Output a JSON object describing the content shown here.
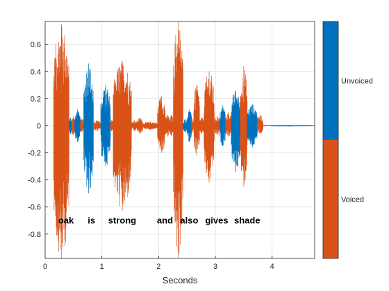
{
  "chart_data": {
    "type": "line",
    "title": "",
    "xlabel": "Seconds",
    "ylabel": "",
    "xlim": [
      0,
      4.75
    ],
    "ylim": [
      -0.98,
      0.77
    ],
    "x_ticks": [
      "0",
      "1",
      "2",
      "3",
      "4"
    ],
    "y_ticks": [
      "0.6",
      "0.4",
      "0.2",
      "0",
      "-0.2",
      "-0.4",
      "-0.6",
      "-0.8"
    ],
    "grid": true,
    "colors": {
      "voiced": "#D95319",
      "unvoiced": "#0072BD",
      "silence": "#0072BD"
    },
    "series": [
      {
        "name": "Voiced",
        "color": "#D95319"
      },
      {
        "name": "Unvoiced",
        "color": "#0072BD"
      }
    ],
    "segments": [
      {
        "start": 0.0,
        "end": 0.15,
        "label": "unvoiced",
        "amp_pos": 0.0,
        "amp_neg": 0.0
      },
      {
        "start": 0.15,
        "end": 0.42,
        "label": "voiced",
        "amp_pos": 0.75,
        "amp_neg": 0.98
      },
      {
        "start": 0.42,
        "end": 0.47,
        "label": "unvoiced",
        "amp_pos": 0.06,
        "amp_neg": 0.06
      },
      {
        "start": 0.47,
        "end": 0.52,
        "label": "voiced",
        "amp_pos": 0.07,
        "amp_neg": 0.07
      },
      {
        "start": 0.52,
        "end": 0.62,
        "label": "unvoiced",
        "amp_pos": 0.12,
        "amp_neg": 0.12
      },
      {
        "start": 0.62,
        "end": 0.68,
        "label": "voiced",
        "amp_pos": 0.05,
        "amp_neg": 0.05
      },
      {
        "start": 0.68,
        "end": 0.85,
        "label": "unvoiced",
        "amp_pos": 0.46,
        "amp_neg": 0.5
      },
      {
        "start": 0.85,
        "end": 0.98,
        "label": "voiced",
        "amp_pos": 0.04,
        "amp_neg": 0.04
      },
      {
        "start": 0.98,
        "end": 1.15,
        "label": "unvoiced",
        "amp_pos": 0.3,
        "amp_neg": 0.3
      },
      {
        "start": 1.15,
        "end": 1.2,
        "label": "voiced",
        "amp_pos": 0.04,
        "amp_neg": 0.04
      },
      {
        "start": 1.2,
        "end": 1.52,
        "label": "voiced",
        "amp_pos": 0.48,
        "amp_neg": 0.63
      },
      {
        "start": 1.52,
        "end": 1.62,
        "label": "voiced",
        "amp_pos": 0.04,
        "amp_neg": 0.04
      },
      {
        "start": 1.62,
        "end": 1.72,
        "label": "voiced",
        "amp_pos": 0.06,
        "amp_neg": 0.06
      },
      {
        "start": 1.72,
        "end": 1.98,
        "label": "voiced",
        "amp_pos": 0.03,
        "amp_neg": 0.03
      },
      {
        "start": 1.98,
        "end": 2.12,
        "label": "voiced",
        "amp_pos": 0.22,
        "amp_neg": 0.2
      },
      {
        "start": 2.12,
        "end": 2.2,
        "label": "voiced",
        "amp_pos": 0.08,
        "amp_neg": 0.08
      },
      {
        "start": 2.2,
        "end": 2.26,
        "label": "voiced",
        "amp_pos": 0.08,
        "amp_neg": 0.08
      },
      {
        "start": 2.26,
        "end": 2.43,
        "label": "voiced",
        "amp_pos": 0.77,
        "amp_neg": 0.98
      },
      {
        "start": 2.43,
        "end": 2.5,
        "label": "unvoiced",
        "amp_pos": 0.05,
        "amp_neg": 0.05
      },
      {
        "start": 2.5,
        "end": 2.58,
        "label": "unvoiced",
        "amp_pos": 0.12,
        "amp_neg": 0.12
      },
      {
        "start": 2.58,
        "end": 2.62,
        "label": "voiced",
        "amp_pos": 0.05,
        "amp_neg": 0.05
      },
      {
        "start": 2.62,
        "end": 2.72,
        "label": "voiced",
        "amp_pos": 0.3,
        "amp_neg": 0.22
      },
      {
        "start": 2.72,
        "end": 2.8,
        "label": "voiced",
        "amp_pos": 0.06,
        "amp_neg": 0.06
      },
      {
        "start": 2.8,
        "end": 2.98,
        "label": "voiced",
        "amp_pos": 0.4,
        "amp_neg": 0.42
      },
      {
        "start": 2.98,
        "end": 3.08,
        "label": "voiced",
        "amp_pos": 0.07,
        "amp_neg": 0.07
      },
      {
        "start": 3.08,
        "end": 3.18,
        "label": "unvoiced",
        "amp_pos": 0.15,
        "amp_neg": 0.15
      },
      {
        "start": 3.18,
        "end": 3.28,
        "label": "voiced",
        "amp_pos": 0.1,
        "amp_neg": 0.08
      },
      {
        "start": 3.28,
        "end": 3.44,
        "label": "unvoiced",
        "amp_pos": 0.26,
        "amp_neg": 0.34
      },
      {
        "start": 3.44,
        "end": 3.56,
        "label": "voiced",
        "amp_pos": 0.44,
        "amp_neg": 0.45
      },
      {
        "start": 3.56,
        "end": 3.74,
        "label": "unvoiced",
        "amp_pos": 0.16,
        "amp_neg": 0.16
      },
      {
        "start": 3.74,
        "end": 3.84,
        "label": "voiced",
        "amp_pos": 0.08,
        "amp_neg": 0.06
      },
      {
        "start": 3.84,
        "end": 4.75,
        "label": "unvoiced",
        "amp_pos": 0.005,
        "amp_neg": 0.005
      }
    ],
    "annotations": [
      {
        "text": "oak",
        "x": 0.23,
        "y": -0.7
      },
      {
        "text": "is",
        "x": 0.75,
        "y": -0.7
      },
      {
        "text": "strong",
        "x": 1.11,
        "y": -0.7
      },
      {
        "text": "and",
        "x": 1.97,
        "y": -0.7
      },
      {
        "text": "also",
        "x": 2.38,
        "y": -0.7
      },
      {
        "text": "gives",
        "x": 2.82,
        "y": -0.7
      },
      {
        "text": "shade",
        "x": 3.33,
        "y": -0.7
      }
    ],
    "colorbar": {
      "labels": [
        "Unvoiced",
        "Voiced"
      ],
      "colors": [
        "#0072BD",
        "#D95319"
      ]
    }
  }
}
